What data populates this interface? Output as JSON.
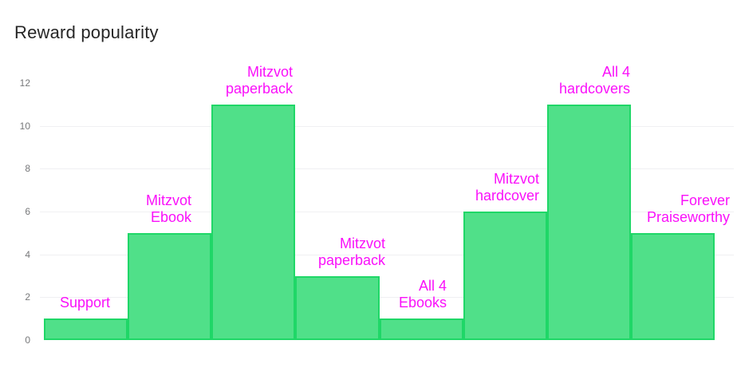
{
  "page": {
    "title": "Reward popularity"
  },
  "colors": {
    "background": "#ffffff",
    "title_text": "#262626",
    "bar_fill": "#50e089",
    "bar_border": "#1fd767",
    "bar_label": "#fa10fa",
    "axis_tick_text": "#77787a",
    "gridline": "#f0f0f2"
  },
  "chart_data": {
    "type": "bar",
    "title": "Reward popularity",
    "categories": [
      "Support",
      "Mitzvot Ebook",
      "Mitzvot paperback",
      "Mitzvot paperback",
      "All 4 Ebooks",
      "Mitzvot hardcover",
      "All 4 hardcovers",
      "Forever Praiseworthy"
    ],
    "values": [
      1,
      5,
      11,
      3,
      1,
      6,
      11,
      5
    ],
    "label_lines": [
      [
        "Support"
      ],
      [
        "Mitzvot",
        "Ebook"
      ],
      [
        "Mitzvot",
        "paperback"
      ],
      [
        "Mitzvot",
        "paperback"
      ],
      [
        "All 4",
        "Ebooks"
      ],
      [
        "Mitzvot",
        "hardcover"
      ],
      [
        "All 4",
        "hardcovers"
      ],
      [
        "Forever",
        "Praiseworthy"
      ]
    ],
    "xlabel": "",
    "ylabel": "",
    "ylim": [
      0,
      12
    ],
    "yticks": [
      0,
      2,
      4,
      6,
      8,
      10,
      12
    ],
    "gridline_values": [
      2,
      4,
      6,
      8,
      10
    ],
    "grid": true,
    "legend": false,
    "bar_labels_color": "#fa10fa",
    "bar_fill_color": "#50e089",
    "bar_border_color": "#1fd767"
  }
}
